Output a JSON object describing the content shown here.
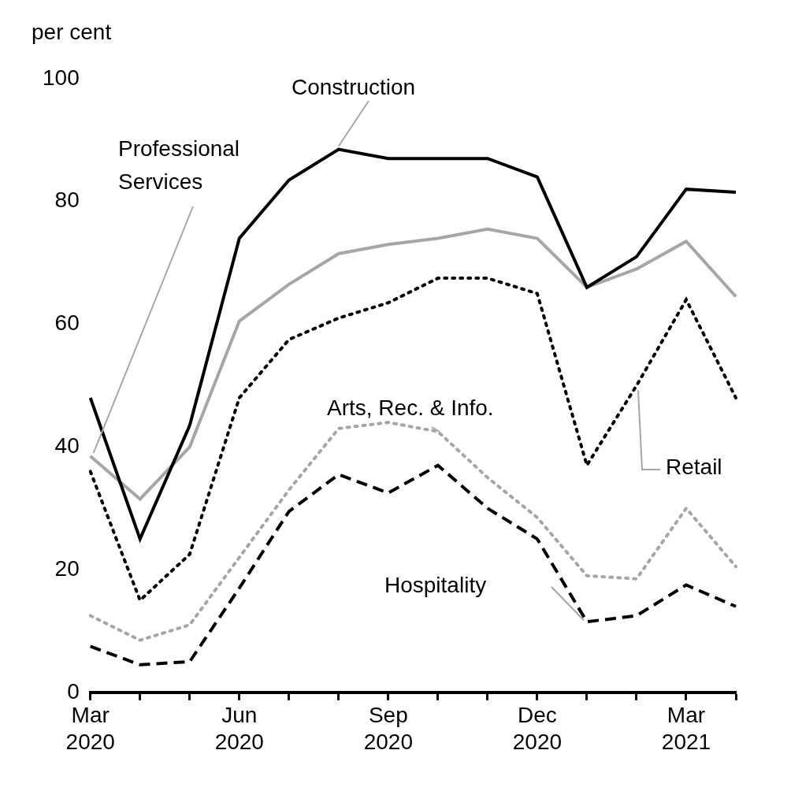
{
  "chart_data": {
    "type": "line",
    "y_label": "per cent",
    "categories": [
      "Mar 2020",
      null,
      null,
      "Jun 2020",
      null,
      null,
      "Sep 2020",
      null,
      null,
      "Dec 2020",
      null,
      null,
      "Mar 2021",
      null
    ],
    "series": [
      {
        "name": "Construction",
        "color": "#000000",
        "line_style": "solid",
        "values": [
          48,
          25,
          43.5,
          74,
          83.5,
          88.5,
          87,
          87,
          87,
          84,
          66,
          71,
          82,
          81.5
        ]
      },
      {
        "name": "Professional Services",
        "color": "#a6a6a6",
        "line_style": "solid",
        "values": [
          38.5,
          31.5,
          40,
          60.5,
          66.5,
          71.5,
          73,
          74,
          75.5,
          74,
          66,
          69,
          73.5,
          64.5
        ]
      },
      {
        "name": "Retail",
        "color": "#000000",
        "line_style": "dotted",
        "values": [
          36,
          15,
          22.5,
          48,
          57.5,
          61,
          63.5,
          67.5,
          67.5,
          65,
          37,
          50,
          64,
          48
        ]
      },
      {
        "name": "Arts, Rec. & Info.",
        "color": "#a6a6a6",
        "line_style": "dotted",
        "values": [
          12.5,
          8.5,
          11,
          22,
          33,
          43,
          44,
          42.5,
          35,
          28.5,
          19,
          18.5,
          30,
          20.5
        ]
      },
      {
        "name": "Hospitality",
        "color": "#000000",
        "line_style": "dashed",
        "values": [
          7.5,
          4.5,
          5,
          17,
          29.5,
          35.5,
          32.5,
          37,
          30,
          25,
          11.5,
          12.5,
          17.5,
          14
        ]
      }
    ],
    "ylim": [
      0,
      100
    ],
    "yticks": [
      0,
      20,
      40,
      60,
      80,
      100
    ],
    "grid": false
  }
}
